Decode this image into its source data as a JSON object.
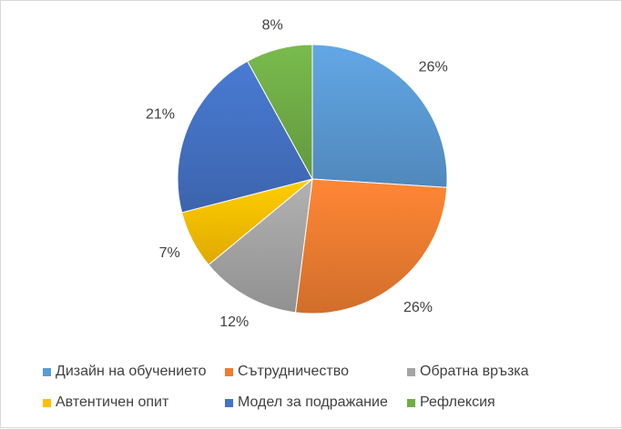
{
  "chart_data": {
    "type": "pie",
    "categories": [
      "Дизайн на обучението",
      "Сътрудничество",
      "Обратна връзка",
      "Автентичен опит",
      "Модел за подражание",
      "Рефлексия"
    ],
    "values": [
      26,
      26,
      12,
      7,
      21,
      8
    ],
    "data_labels": [
      "26%",
      "26%",
      "12%",
      "7%",
      "21%",
      "8%"
    ],
    "colors": [
      "#5b9bd5",
      "#ed7d31",
      "#a5a5a5",
      "#ffc000",
      "#4472c4",
      "#70ad47"
    ],
    "start_angle_deg": 0,
    "direction": "clockwise",
    "legend_position": "bottom",
    "title": ""
  }
}
